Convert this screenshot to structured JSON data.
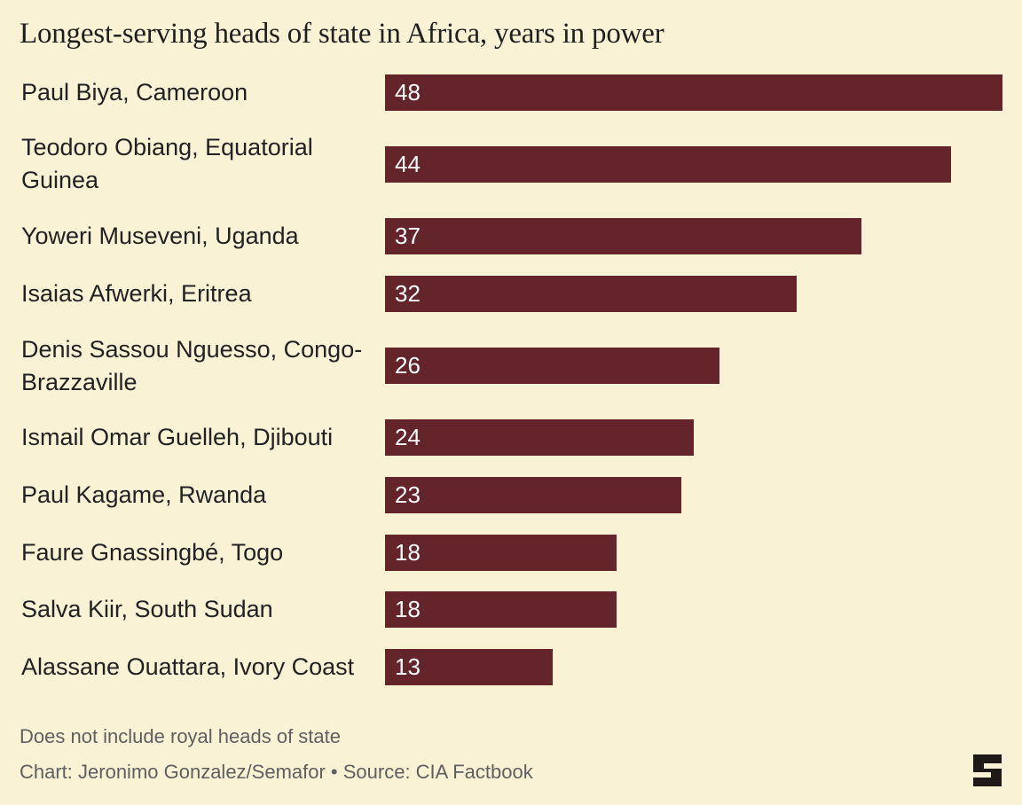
{
  "chart_data": {
    "type": "bar",
    "orientation": "horizontal",
    "title": "Longest-serving heads of state in Africa, years in power",
    "categories": [
      "Paul Biya, Cameroon",
      "Teodoro Obiang, Equatorial Guinea",
      "Yoweri Museveni, Uganda",
      "Isaias Afwerki, Eritrea",
      "Denis Sassou Nguesso, Congo-Brazzaville",
      "Ismail Omar Guelleh, Djibouti",
      "Paul Kagame, Rwanda",
      "Faure Gnassingbé, Togo",
      "Salva Kiir, South Sudan",
      "Alassane Ouattara, Ivory Coast"
    ],
    "values": [
      48,
      44,
      37,
      32,
      26,
      24,
      23,
      18,
      18,
      13
    ],
    "xlim": [
      0,
      48
    ],
    "grid": false,
    "bar_color": "#63242a",
    "data_labels": true
  },
  "footer": {
    "note": "Does not include royal heads of state",
    "credit": "Chart: Jeronimo Gonzalez/Semafor • Source: CIA Factbook"
  },
  "logo": {
    "icon": "semafor-logo-icon"
  }
}
